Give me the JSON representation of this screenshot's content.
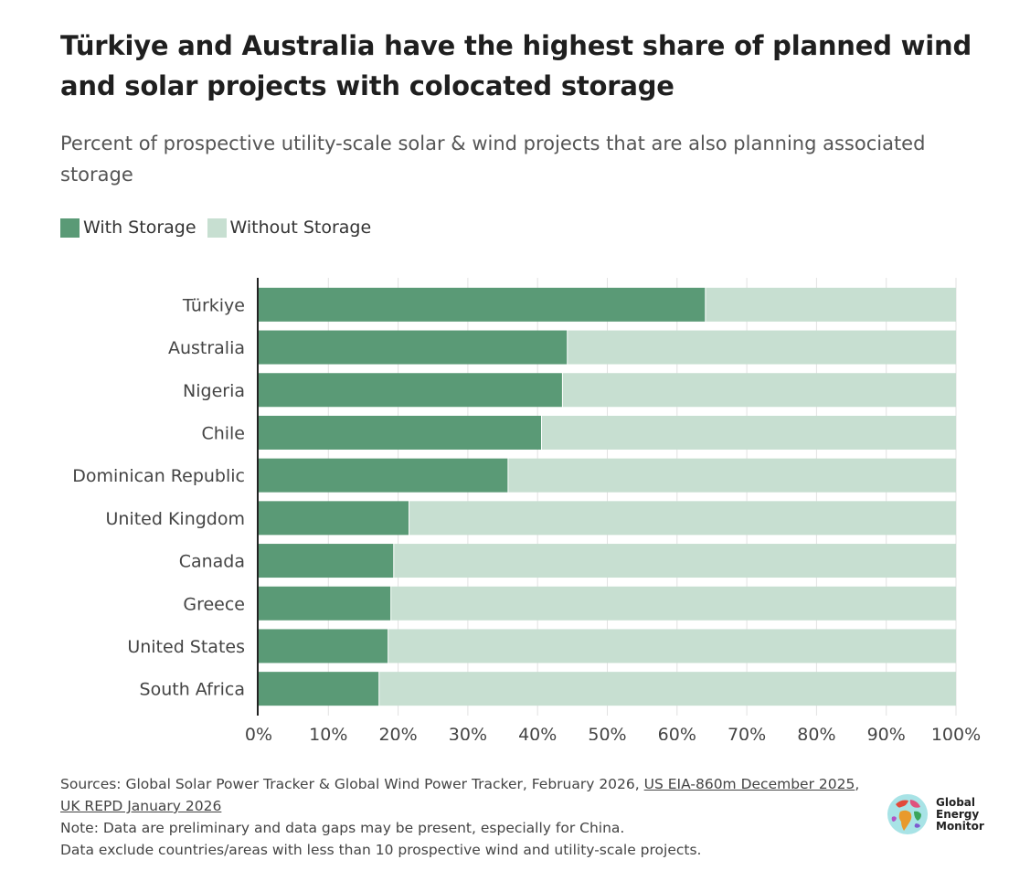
{
  "header": {
    "title": "Türkiye and Australia have the highest share of planned wind and solar projects with colocated storage",
    "subtitle": "Percent of prospective utility-scale solar & wind projects that are also planning associated storage"
  },
  "legend": {
    "with_storage": "With Storage",
    "without_storage": "Without Storage"
  },
  "colors": {
    "with_storage": "#5a9a76",
    "without_storage": "#c7dfd1",
    "grid": "#e2e2e2",
    "axis": "#222222"
  },
  "chart_data": {
    "type": "bar",
    "orientation": "horizontal",
    "stacked": true,
    "categories": [
      "Türkiye",
      "Australia",
      "Nigeria",
      "Chile",
      "Dominican Republic",
      "United Kingdom",
      "Canada",
      "Greece",
      "United States",
      "South Africa"
    ],
    "series": [
      {
        "name": "With Storage",
        "values": [
          64,
          44.2,
          43.5,
          40.5,
          35.7,
          21.5,
          19.3,
          18.9,
          18.5,
          17.2
        ]
      },
      {
        "name": "Without Storage",
        "values": [
          36,
          55.8,
          56.5,
          59.5,
          64.3,
          78.5,
          80.7,
          81.1,
          81.5,
          82.8
        ]
      }
    ],
    "xlim": [
      0,
      100
    ],
    "xticks": [
      0,
      10,
      20,
      30,
      40,
      50,
      60,
      70,
      80,
      90,
      100
    ],
    "xtick_labels": [
      "0%",
      "10%",
      "20%",
      "30%",
      "40%",
      "50%",
      "60%",
      "70%",
      "80%",
      "90%",
      "100%"
    ],
    "grid": true,
    "legend_position": "top-left"
  },
  "footer": {
    "sources_prefix": "Sources: Global Solar Power Tracker & Global Wind Power Tracker, February 2026, ",
    "link_eia": "US EIA-860m December 2025",
    "separator": ", ",
    "link_repd": "UK REPD January 2026",
    "note": "Note: Data are preliminary and data gaps may be present, especially for China.",
    "exclusion": "Data exclude countries/areas with less than 10 prospective wind and utility-scale projects."
  },
  "logo": {
    "line1": "Global",
    "line2": "Energy",
    "line3": "Monitor"
  }
}
